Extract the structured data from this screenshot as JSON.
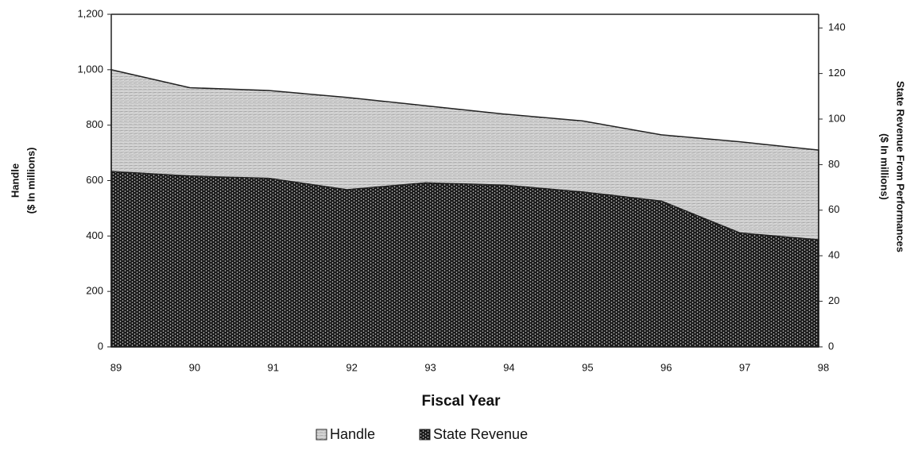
{
  "chart_data": {
    "type": "area",
    "x_label": "Fiscal Year",
    "y_label": [
      "Handle",
      "($ In millions)"
    ],
    "y2_label": [
      "State Revenue From Performances",
      "($ In millions)"
    ],
    "categories": [
      "89",
      "90",
      "91",
      "92",
      "93",
      "94",
      "95",
      "96",
      "97",
      "98"
    ],
    "series": [
      {
        "name": "Handle",
        "color": "#9a9a9a",
        "values": [
          1000,
          935,
          925,
          900,
          870,
          840,
          815,
          765,
          740,
          710
        ]
      },
      {
        "name": "State Revenue",
        "color": "#1a1a1a",
        "axis": "y2",
        "values": [
          77,
          75,
          74,
          69,
          72,
          71,
          68,
          64,
          50,
          47
        ]
      }
    ],
    "ylim": [
      0,
      1200
    ],
    "yticks": [
      0,
      200,
      400,
      600,
      800,
      {
        "value": 1000,
        "label": "1,000"
      },
      {
        "value": 1200,
        "label": "1,200"
      }
    ],
    "y2lim": [
      0,
      146
    ],
    "y2ticks": [
      0,
      20,
      40,
      60,
      80,
      100,
      120,
      140
    ],
    "legend": "bottom"
  }
}
